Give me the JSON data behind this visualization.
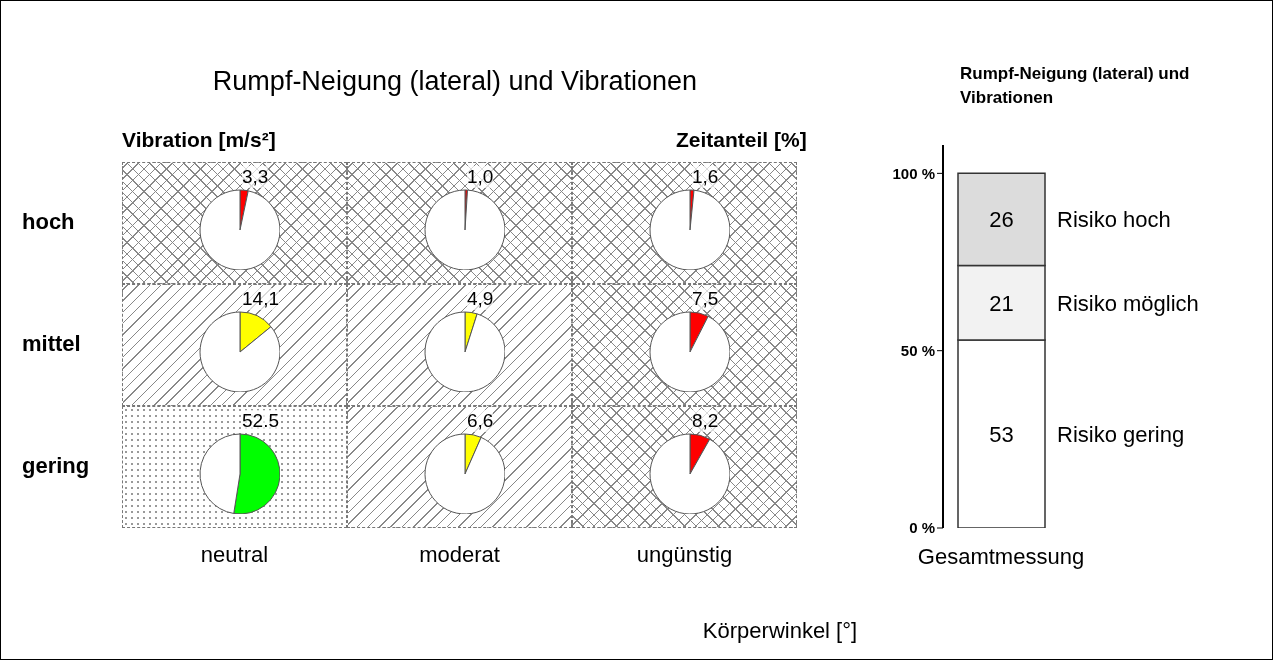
{
  "chart_data": [
    {
      "type": "other",
      "title": "Rumpf-Neigung (lateral) und Vibrationen",
      "ylabel": "Vibration [m/s²]",
      "xlabel": "Körperwinkel [°]",
      "categories": [
        "neutral",
        "moderat",
        "ungünstig"
      ],
      "y_categories": [
        "hoch",
        "mittel",
        "gering"
      ]
    },
    {
      "type": "pie",
      "categories": [
        null,
        null
      ],
      "values": [
        3.3,
        96.7
      ],
      "colors": [
        "#ff0000",
        "#ffffff"
      ],
      "value_labels": [
        "3,3",
        null
      ]
    },
    {
      "type": "pie",
      "categories": [
        null,
        null
      ],
      "values": [
        1.0,
        99.0
      ],
      "colors": [
        "#ff0000",
        "#ffffff"
      ],
      "value_labels": [
        "1,0",
        null
      ]
    },
    {
      "type": "pie",
      "categories": [
        null,
        null
      ],
      "values": [
        1.6,
        98.4
      ],
      "colors": [
        "#ff0000",
        "#ffffff"
      ],
      "value_labels": [
        "1,6",
        null
      ]
    },
    {
      "type": "pie",
      "categories": [
        null,
        null
      ],
      "values": [
        14.1,
        85.9
      ],
      "colors": [
        "#ffff00",
        "#ffffff"
      ],
      "value_labels": [
        "14,1",
        null
      ]
    },
    {
      "type": "pie",
      "categories": [
        null,
        null
      ],
      "values": [
        4.9,
        95.1
      ],
      "colors": [
        "#ffff00",
        "#ffffff"
      ],
      "value_labels": [
        "4,9",
        null
      ]
    },
    {
      "type": "pie",
      "categories": [
        null,
        null
      ],
      "values": [
        7.5,
        92.5
      ],
      "colors": [
        "#ff0000",
        "#ffffff"
      ],
      "value_labels": [
        "7,5",
        null
      ]
    },
    {
      "type": "pie",
      "categories": [
        null,
        null
      ],
      "values": [
        52.5,
        47.5
      ],
      "colors": [
        "#00ff00",
        "#ffffff"
      ],
      "value_labels": [
        "52.5",
        null
      ]
    },
    {
      "type": "pie",
      "categories": [
        null,
        null
      ],
      "values": [
        6.6,
        93.4
      ],
      "colors": [
        "#ffff00",
        "#ffffff"
      ],
      "value_labels": [
        "6,6",
        null
      ]
    },
    {
      "type": "pie",
      "categories": [
        null,
        null
      ],
      "values": [
        8.2,
        91.8
      ],
      "colors": [
        "#ff0000",
        "#ffffff"
      ],
      "value_labels": [
        "8,2",
        null
      ]
    },
    {
      "type": "bar",
      "title": "Rumpf-Neigung (lateral) und Vibrationen",
      "ylabel": "Zeitanteil [%]",
      "categories": [
        "Gesamtmessung"
      ],
      "stacked": true,
      "series": [
        {
          "name": "Risiko gering",
          "color": "#ffffff",
          "values": [
            53
          ]
        },
        {
          "name": "Risiko möglich",
          "color": "#f2f2f2",
          "values": [
            21
          ]
        },
        {
          "name": "Risiko hoch",
          "color": "#dcdcdc",
          "values": [
            26
          ]
        }
      ],
      "ylim": [
        0,
        108
      ],
      "yticks": [
        {
          "value": 0,
          "label": "0 %"
        },
        {
          "value": 50,
          "label": "50 %"
        },
        {
          "value": 100,
          "label": "100 %"
        }
      ],
      "data_labels": true
    }
  ]
}
